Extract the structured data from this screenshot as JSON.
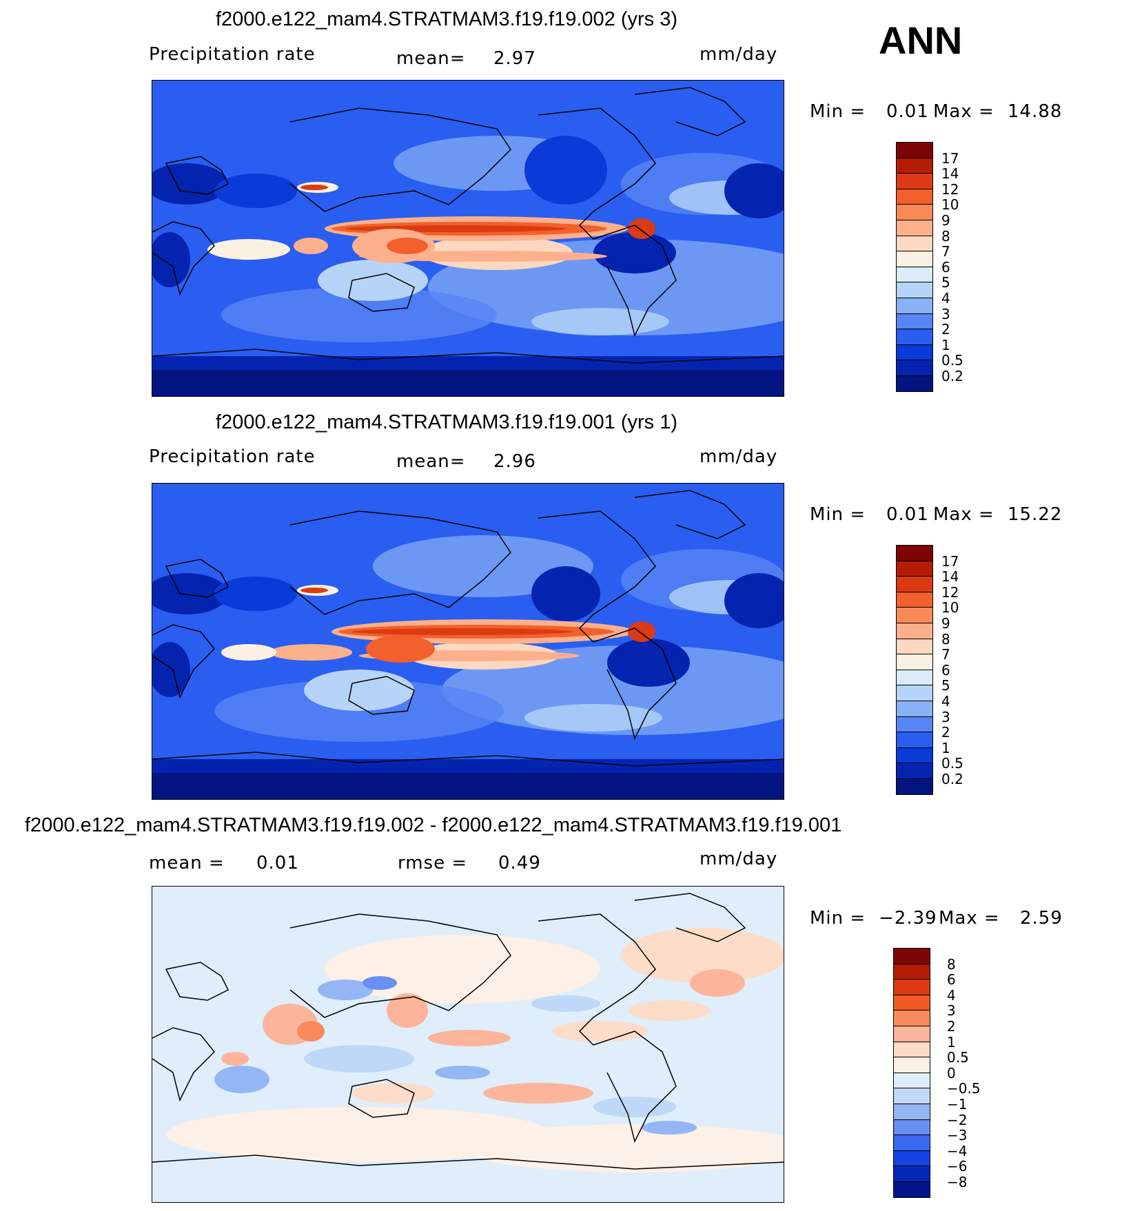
{
  "season": "ANN",
  "panels": [
    {
      "title": "f2000.e122_mam4.STRATMAM3.f19.f19.002 (yrs 3)",
      "variable": "Precipitation  rate",
      "stat1_label": "mean=",
      "stat1_value": "2.97",
      "units": "mm/day",
      "min_label": "Min  =",
      "min_value": "0.01",
      "max_label": "Max  =",
      "max_value": "14.88",
      "palette": "precip",
      "colorbar_labels": [
        "17",
        "14",
        "12",
        "10",
        "9",
        "8",
        "7",
        "6",
        "5",
        "4",
        "3",
        "2",
        "1",
        "0.5",
        "0.2"
      ]
    },
    {
      "title": "f2000.e122_mam4.STRATMAM3.f19.f19.001 (yrs 1)",
      "variable": "Precipitation  rate",
      "stat1_label": "mean=",
      "stat1_value": "2.96",
      "units": "mm/day",
      "min_label": "Min  =",
      "min_value": "0.01",
      "max_label": "Max  =",
      "max_value": "15.22",
      "palette": "precip",
      "colorbar_labels": [
        "17",
        "14",
        "12",
        "10",
        "9",
        "8",
        "7",
        "6",
        "5",
        "4",
        "3",
        "2",
        "1",
        "0.5",
        "0.2"
      ]
    },
    {
      "title": "f2000.e122_mam4.STRATMAM3.f19.f19.002 - f2000.e122_mam4.STRATMAM3.f19.f19.001",
      "stat1_label": "mean  =",
      "stat1_value": "0.01",
      "stat2_label": "rmse  =",
      "stat2_value": "0.49",
      "units": "mm/day",
      "min_label": "Min  =",
      "min_value": "−2.39",
      "max_label": "Max  =",
      "max_value": "2.59",
      "palette": "diff",
      "colorbar_labels": [
        "8",
        "6",
        "4",
        "3",
        "2",
        "1",
        "0.5",
        "0",
        "−0.5",
        "−1",
        "−2",
        "−3",
        "−4",
        "−6",
        "−8"
      ]
    }
  ],
  "palettes": {
    "precip": [
      "#7d0505",
      "#b51c05",
      "#dc3a12",
      "#f2602c",
      "#fa8a55",
      "#fcb08c",
      "#fdd8c0",
      "#fbf1e2",
      "#d9ecf8",
      "#b5d4f7",
      "#89b1f5",
      "#5885f5",
      "#2a5ef0",
      "#0a3ad8",
      "#0424b0",
      "#02147f"
    ],
    "diff": [
      "#7d0505",
      "#b51c05",
      "#dc3a12",
      "#f25a26",
      "#f88a5c",
      "#fcb49a",
      "#fddcc8",
      "#fdf0e6",
      "#dfeefa",
      "#bfd8f8",
      "#94b6f5",
      "#6a8ff2",
      "#3b68f0",
      "#1843e4",
      "#0628b8",
      "#03148a"
    ]
  }
}
